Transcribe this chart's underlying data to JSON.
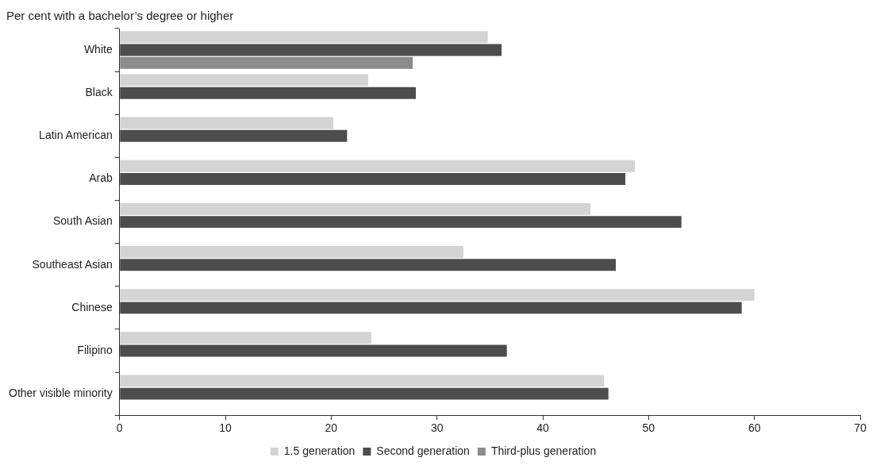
{
  "chart_data": {
    "type": "bar",
    "orientation": "horizontal",
    "title": "Per cent with a bachelor’s degree or higher",
    "categories": [
      "White",
      "Black",
      "Latin American",
      "Arab",
      "South Asian",
      "Southeast Asian",
      "Chinese",
      "Filipino",
      "Other visible minority"
    ],
    "series": [
      {
        "name": "1.5 generation",
        "color": "#d4d4d4",
        "values": [
          34.8,
          23.5,
          20.2,
          48.7,
          44.5,
          32.5,
          60,
          23.8,
          45.8
        ]
      },
      {
        "name": "Second generation",
        "color": "#4d4d4d",
        "values": [
          36.1,
          28.0,
          21.5,
          47.8,
          53.1,
          46.9,
          58.8,
          36.6,
          46.2
        ]
      },
      {
        "name": "Third-plus generation",
        "color": "#8c8c8c",
        "values": [
          27.7,
          null,
          null,
          null,
          null,
          null,
          null,
          null,
          null
        ]
      }
    ],
    "xlim": [
      0,
      70
    ],
    "xticks": [
      0,
      10,
      20,
      30,
      40,
      50,
      60,
      70
    ],
    "grid": false,
    "legend": "bottom"
  }
}
